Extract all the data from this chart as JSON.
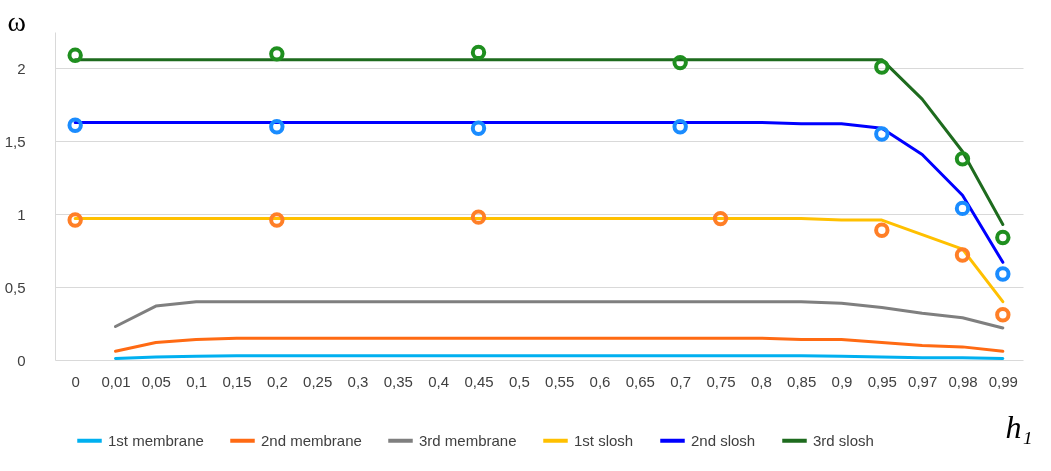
{
  "chart_data": {
    "type": "line",
    "xlabel": "h₁",
    "ylabel": "ω",
    "categories": [
      "0",
      "0,01",
      "0,05",
      "0,1",
      "0,15",
      "0,2",
      "0,25",
      "0,3",
      "0,35",
      "0,4",
      "0,45",
      "0,5",
      "0,55",
      "0,6",
      "0,65",
      "0,7",
      "0,75",
      "0,8",
      "0,85",
      "0,9",
      "0,95",
      "0,97",
      "0,98",
      "0,99"
    ],
    "series": [
      {
        "name": "1st membrane",
        "color": "#00b0f0",
        "values": [
          null,
          0.01,
          0.02,
          0.025,
          0.03,
          0.03,
          0.03,
          0.03,
          0.03,
          0.03,
          0.03,
          0.03,
          0.03,
          0.03,
          0.03,
          0.03,
          0.03,
          0.03,
          0.03,
          0.025,
          0.02,
          0.015,
          0.015,
          0.01
        ]
      },
      {
        "name": "2nd membrane",
        "color": "#ff6a13",
        "values": [
          null,
          0.06,
          0.12,
          0.14,
          0.15,
          0.15,
          0.15,
          0.15,
          0.15,
          0.15,
          0.15,
          0.15,
          0.15,
          0.15,
          0.15,
          0.15,
          0.15,
          0.15,
          0.14,
          0.14,
          0.12,
          0.1,
          0.09,
          0.06
        ]
      },
      {
        "name": "3rd membrane",
        "color": "#7f7f7f",
        "values": [
          null,
          0.23,
          0.37,
          0.4,
          0.4,
          0.4,
          0.4,
          0.4,
          0.4,
          0.4,
          0.4,
          0.4,
          0.4,
          0.4,
          0.4,
          0.4,
          0.4,
          0.4,
          0.4,
          0.39,
          0.36,
          0.32,
          0.29,
          0.22
        ]
      },
      {
        "name": "1st slosh",
        "color": "#ffc000",
        "values": [
          0.97,
          0.97,
          0.97,
          0.97,
          0.97,
          0.97,
          0.97,
          0.97,
          0.97,
          0.97,
          0.97,
          0.97,
          0.97,
          0.97,
          0.97,
          0.97,
          0.97,
          0.97,
          0.97,
          0.96,
          0.96,
          0.86,
          0.76,
          0.4
        ]
      },
      {
        "name": "2nd slosh",
        "color": "#0000ff",
        "values": [
          1.63,
          1.63,
          1.63,
          1.63,
          1.63,
          1.63,
          1.63,
          1.63,
          1.63,
          1.63,
          1.63,
          1.63,
          1.63,
          1.63,
          1.63,
          1.63,
          1.63,
          1.63,
          1.62,
          1.62,
          1.59,
          1.41,
          1.13,
          0.67
        ]
      },
      {
        "name": "3rd slosh",
        "color": "#1e6b1e",
        "values": [
          2.06,
          2.06,
          2.06,
          2.06,
          2.06,
          2.06,
          2.06,
          2.06,
          2.06,
          2.06,
          2.06,
          2.06,
          2.06,
          2.06,
          2.06,
          2.06,
          2.06,
          2.06,
          2.06,
          2.06,
          2.06,
          1.79,
          1.43,
          0.93
        ]
      },
      {
        "type": "scatter",
        "marker": "circle",
        "color": "#ff7f27",
        "x": [
          "0",
          "0,2",
          "0,45",
          "0,75",
          "0,95",
          "0,98",
          "0,99"
        ],
        "values": [
          0.96,
          0.96,
          0.98,
          0.97,
          0.89,
          0.72,
          0.31
        ]
      },
      {
        "type": "scatter",
        "marker": "circle",
        "color": "#1a8cff",
        "x": [
          "0",
          "0,2",
          "0,45",
          "0,7",
          "0,95",
          "0,98",
          "0,99"
        ],
        "values": [
          1.61,
          1.6,
          1.59,
          1.6,
          1.55,
          1.04,
          0.59
        ]
      },
      {
        "type": "scatter",
        "marker": "circle",
        "color": "#1f8f1f",
        "x": [
          "0",
          "0,2",
          "0,45",
          "0,7",
          "0,95",
          "0,98",
          "0,99"
        ],
        "values": [
          2.09,
          2.1,
          2.11,
          2.04,
          2.01,
          1.38,
          0.84
        ]
      }
    ],
    "ylim": [
      0,
      2.25
    ],
    "yticks": [
      0,
      {
        "value": 0.5,
        "label": "0,5"
      },
      1,
      {
        "value": 1.5,
        "label": "1,5"
      },
      2
    ],
    "grid": "y",
    "legend": "bottom"
  }
}
